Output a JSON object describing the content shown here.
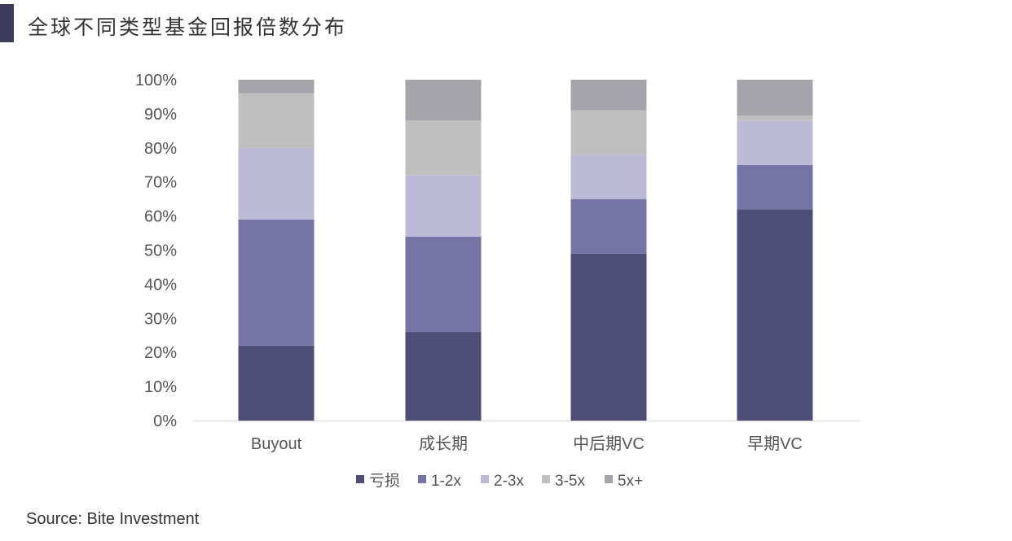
{
  "title": "全球不同类型基金回报倍数分布",
  "source": "Source: Bite Investment",
  "chart_data": {
    "type": "bar",
    "stacked": true,
    "categories": [
      "Buyout",
      "成长期",
      "中后期VC",
      "早期VC"
    ],
    "series": [
      {
        "name": "亏损",
        "color": "#4f4e78",
        "values": [
          22,
          26,
          49,
          62
        ]
      },
      {
        "name": "1-2x",
        "color": "#7674a6",
        "values": [
          37,
          28,
          16,
          13
        ]
      },
      {
        "name": "2-3x",
        "color": "#bcbad6",
        "values": [
          21,
          18,
          13,
          13
        ]
      },
      {
        "name": "3-5x",
        "color": "#bfbfbf",
        "values": [
          16,
          16,
          13,
          1.5
        ]
      },
      {
        "name": "5x+",
        "color": "#a5a4aa",
        "values": [
          4,
          12,
          9,
          10.5
        ]
      }
    ],
    "yticks": [
      "0%",
      "10%",
      "20%",
      "30%",
      "40%",
      "50%",
      "60%",
      "70%",
      "80%",
      "90%",
      "100%"
    ],
    "ylim": [
      0,
      100
    ],
    "grid": false,
    "legend": "bottom"
  }
}
